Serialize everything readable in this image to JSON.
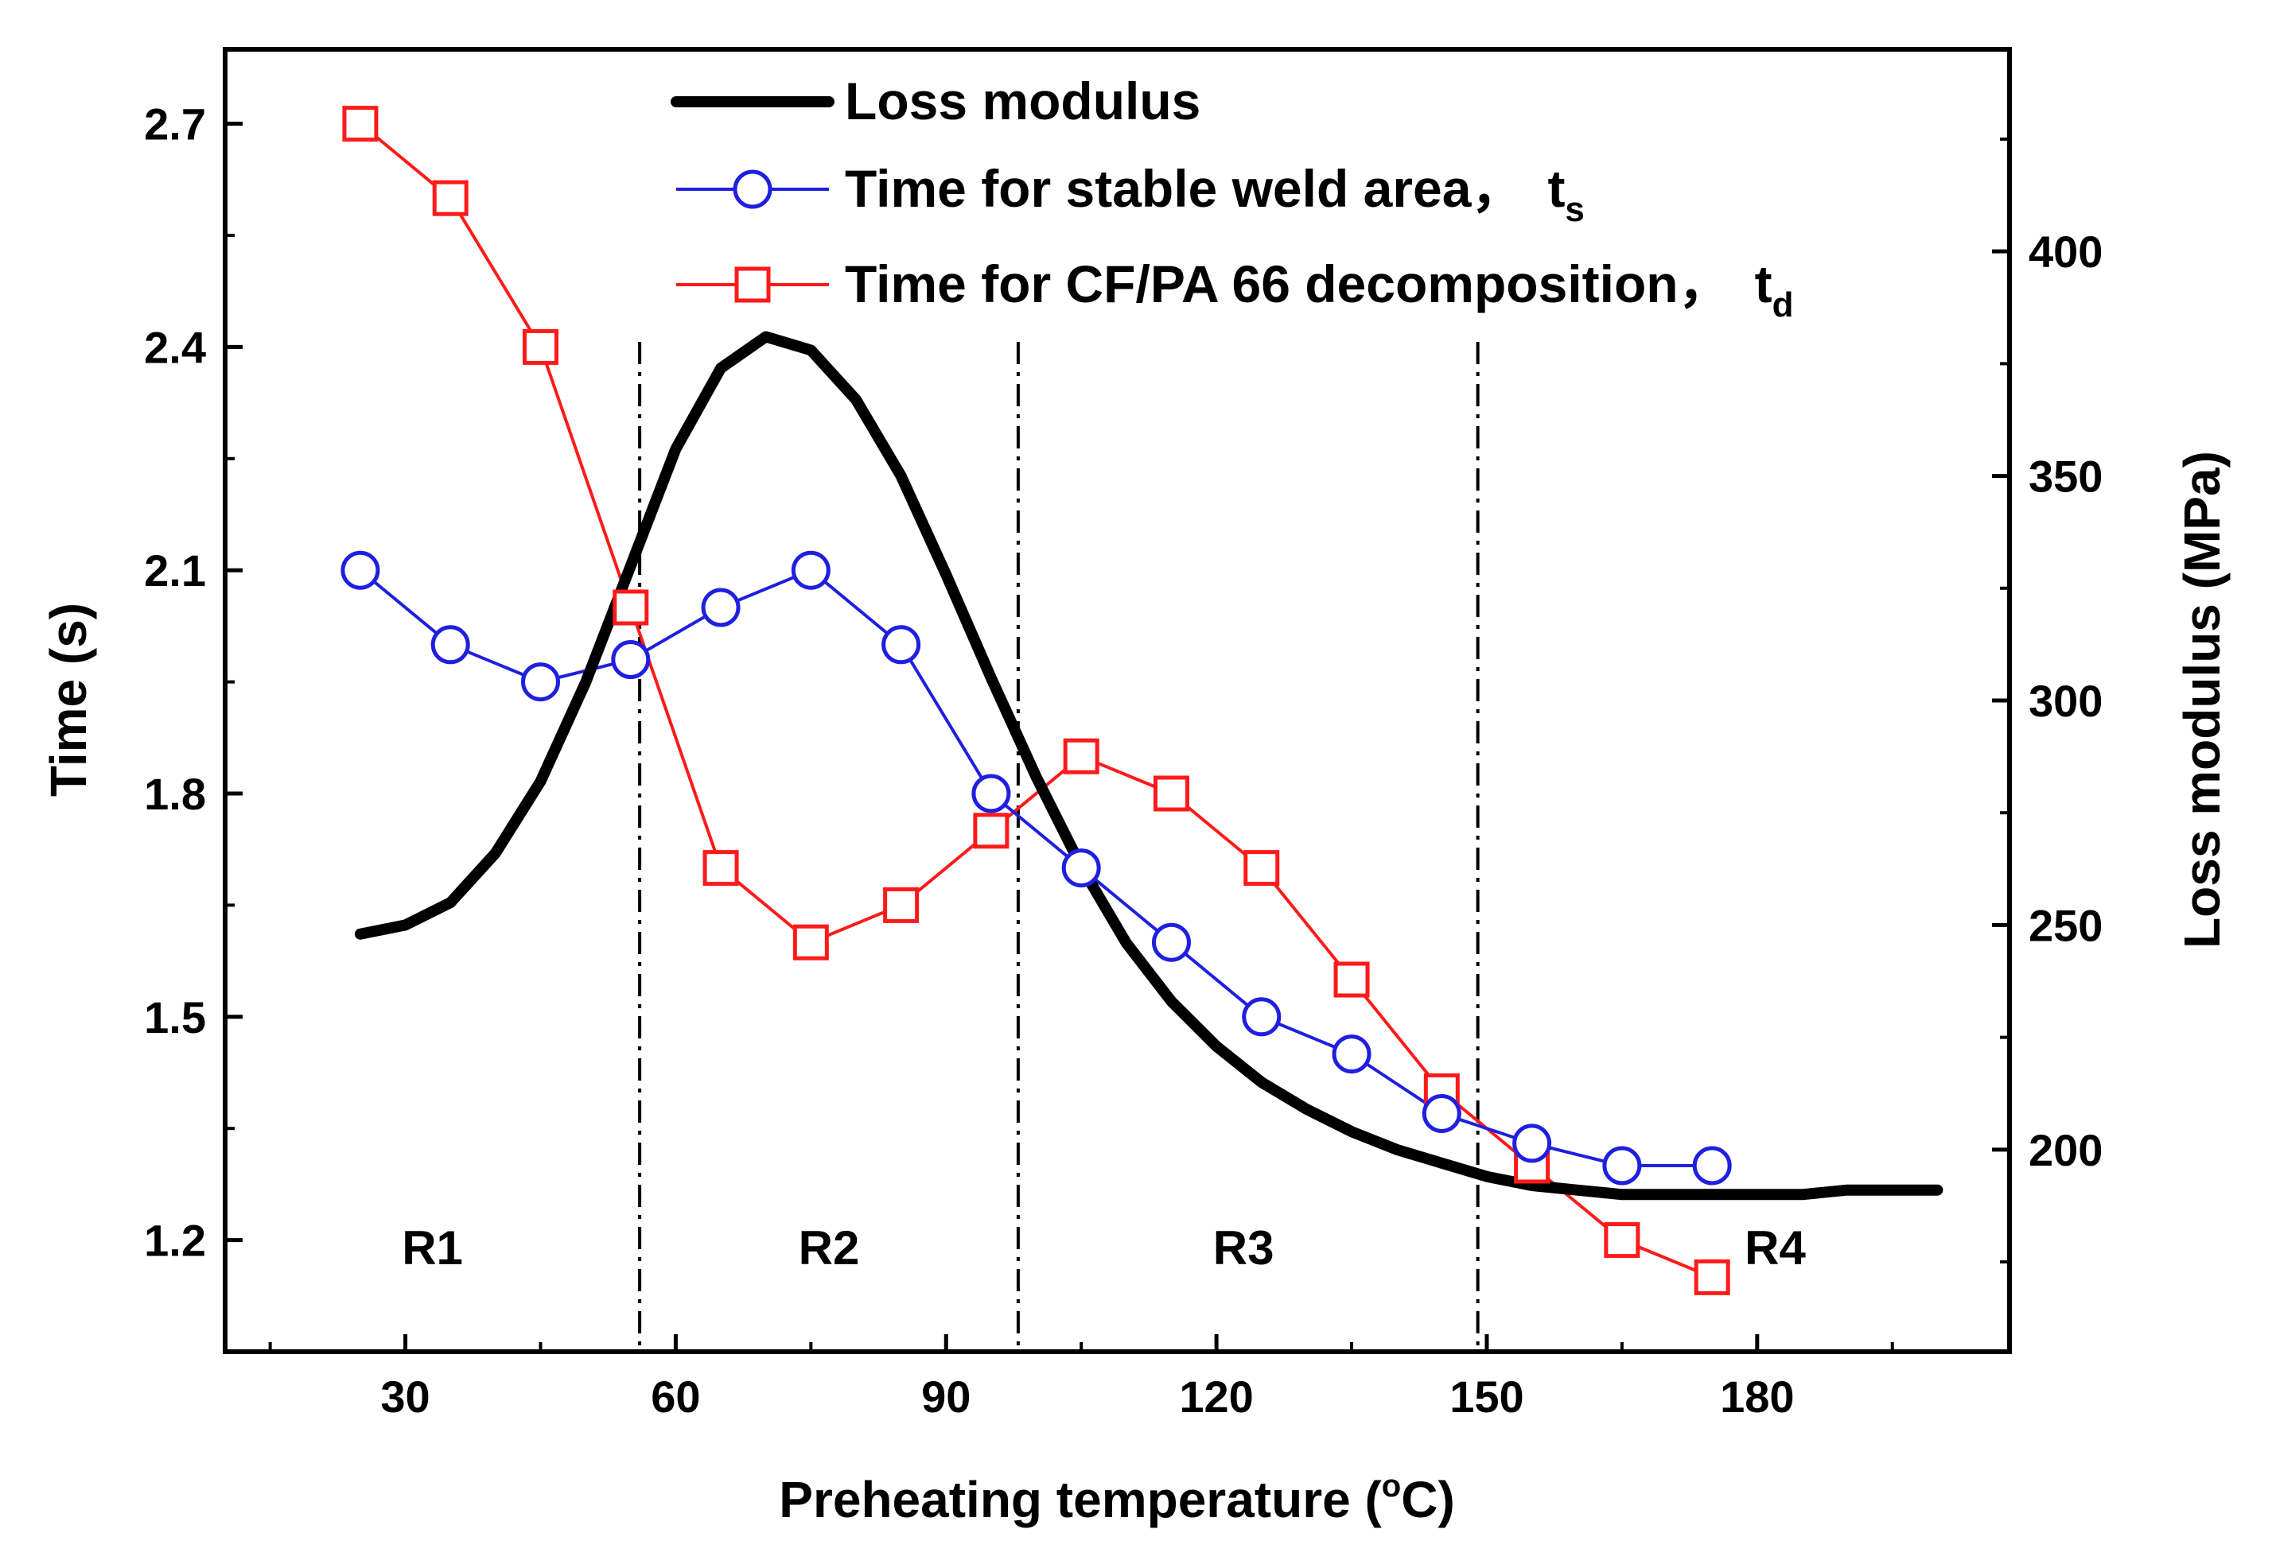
{
  "chart_data": {
    "type": "line",
    "xlabel": "Preheating temperature (",
    "xlabel_degree": "o",
    "xlabel_unit": "C)",
    "ylabel_left": "Time (s)",
    "ylabel_right": "Loss modulus (MPa)",
    "xlim": [
      10,
      208
    ],
    "ylim_left": [
      1.05,
      2.8
    ],
    "ylim_right": [
      155,
      445
    ],
    "x_ticks": [
      30,
      60,
      90,
      120,
      150,
      180
    ],
    "y_left_ticks": [
      1.2,
      1.5,
      1.8,
      2.1,
      2.4,
      2.7
    ],
    "y_right_ticks": [
      200,
      250,
      300,
      350,
      400
    ],
    "series": [
      {
        "name": "Loss modulus",
        "axis": "right",
        "color": "#000000",
        "x": [
          25,
          30,
          35,
          40,
          45,
          50,
          55,
          60,
          65,
          70,
          75,
          80,
          85,
          90,
          95,
          100,
          105,
          110,
          115,
          120,
          125,
          130,
          135,
          140,
          145,
          150,
          155,
          160,
          165,
          170,
          175,
          180,
          185,
          190,
          195,
          200
        ],
        "values": [
          248,
          250,
          255,
          266,
          282,
          304,
          330,
          356,
          374,
          381,
          378,
          367,
          350,
          328,
          305,
          283,
          263,
          246,
          233,
          223,
          215,
          209,
          204,
          200,
          197,
          194,
          192,
          191,
          190,
          190,
          190,
          190,
          190,
          191,
          191,
          191
        ]
      },
      {
        "name": "Time for stable weld area，",
        "subscript_main": "t",
        "subscript": "s",
        "axis": "left",
        "color": "#1f1fe0",
        "x": [
          25,
          35,
          45,
          55,
          65,
          75,
          85,
          95,
          105,
          115,
          125,
          135,
          145,
          155,
          165,
          175
        ],
        "values": [
          2.1,
          2.0,
          1.95,
          1.98,
          2.05,
          2.1,
          2.0,
          1.8,
          1.7,
          1.6,
          1.5,
          1.45,
          1.37,
          1.33,
          1.3,
          1.3
        ]
      },
      {
        "name": "Time for CF/PA 66 decomposition，",
        "subscript_main": "t",
        "subscript": "d",
        "axis": "left",
        "color": "#ff1a1a",
        "x": [
          25,
          35,
          45,
          55,
          65,
          75,
          85,
          95,
          105,
          115,
          125,
          135,
          145,
          155,
          165,
          175
        ],
        "values": [
          2.7,
          2.6,
          2.4,
          2.05,
          1.7,
          1.6,
          1.65,
          1.75,
          1.85,
          1.8,
          1.7,
          1.55,
          1.4,
          1.3,
          1.2,
          1.15
        ]
      }
    ],
    "region_lines": [
      56,
      98,
      149
    ],
    "regions": [
      {
        "label": "R1",
        "x": 33
      },
      {
        "label": "R2",
        "x": 77
      },
      {
        "label": "R3",
        "x": 123
      },
      {
        "label": "R4",
        "x": 182
      }
    ],
    "legend_position": "top-center"
  }
}
